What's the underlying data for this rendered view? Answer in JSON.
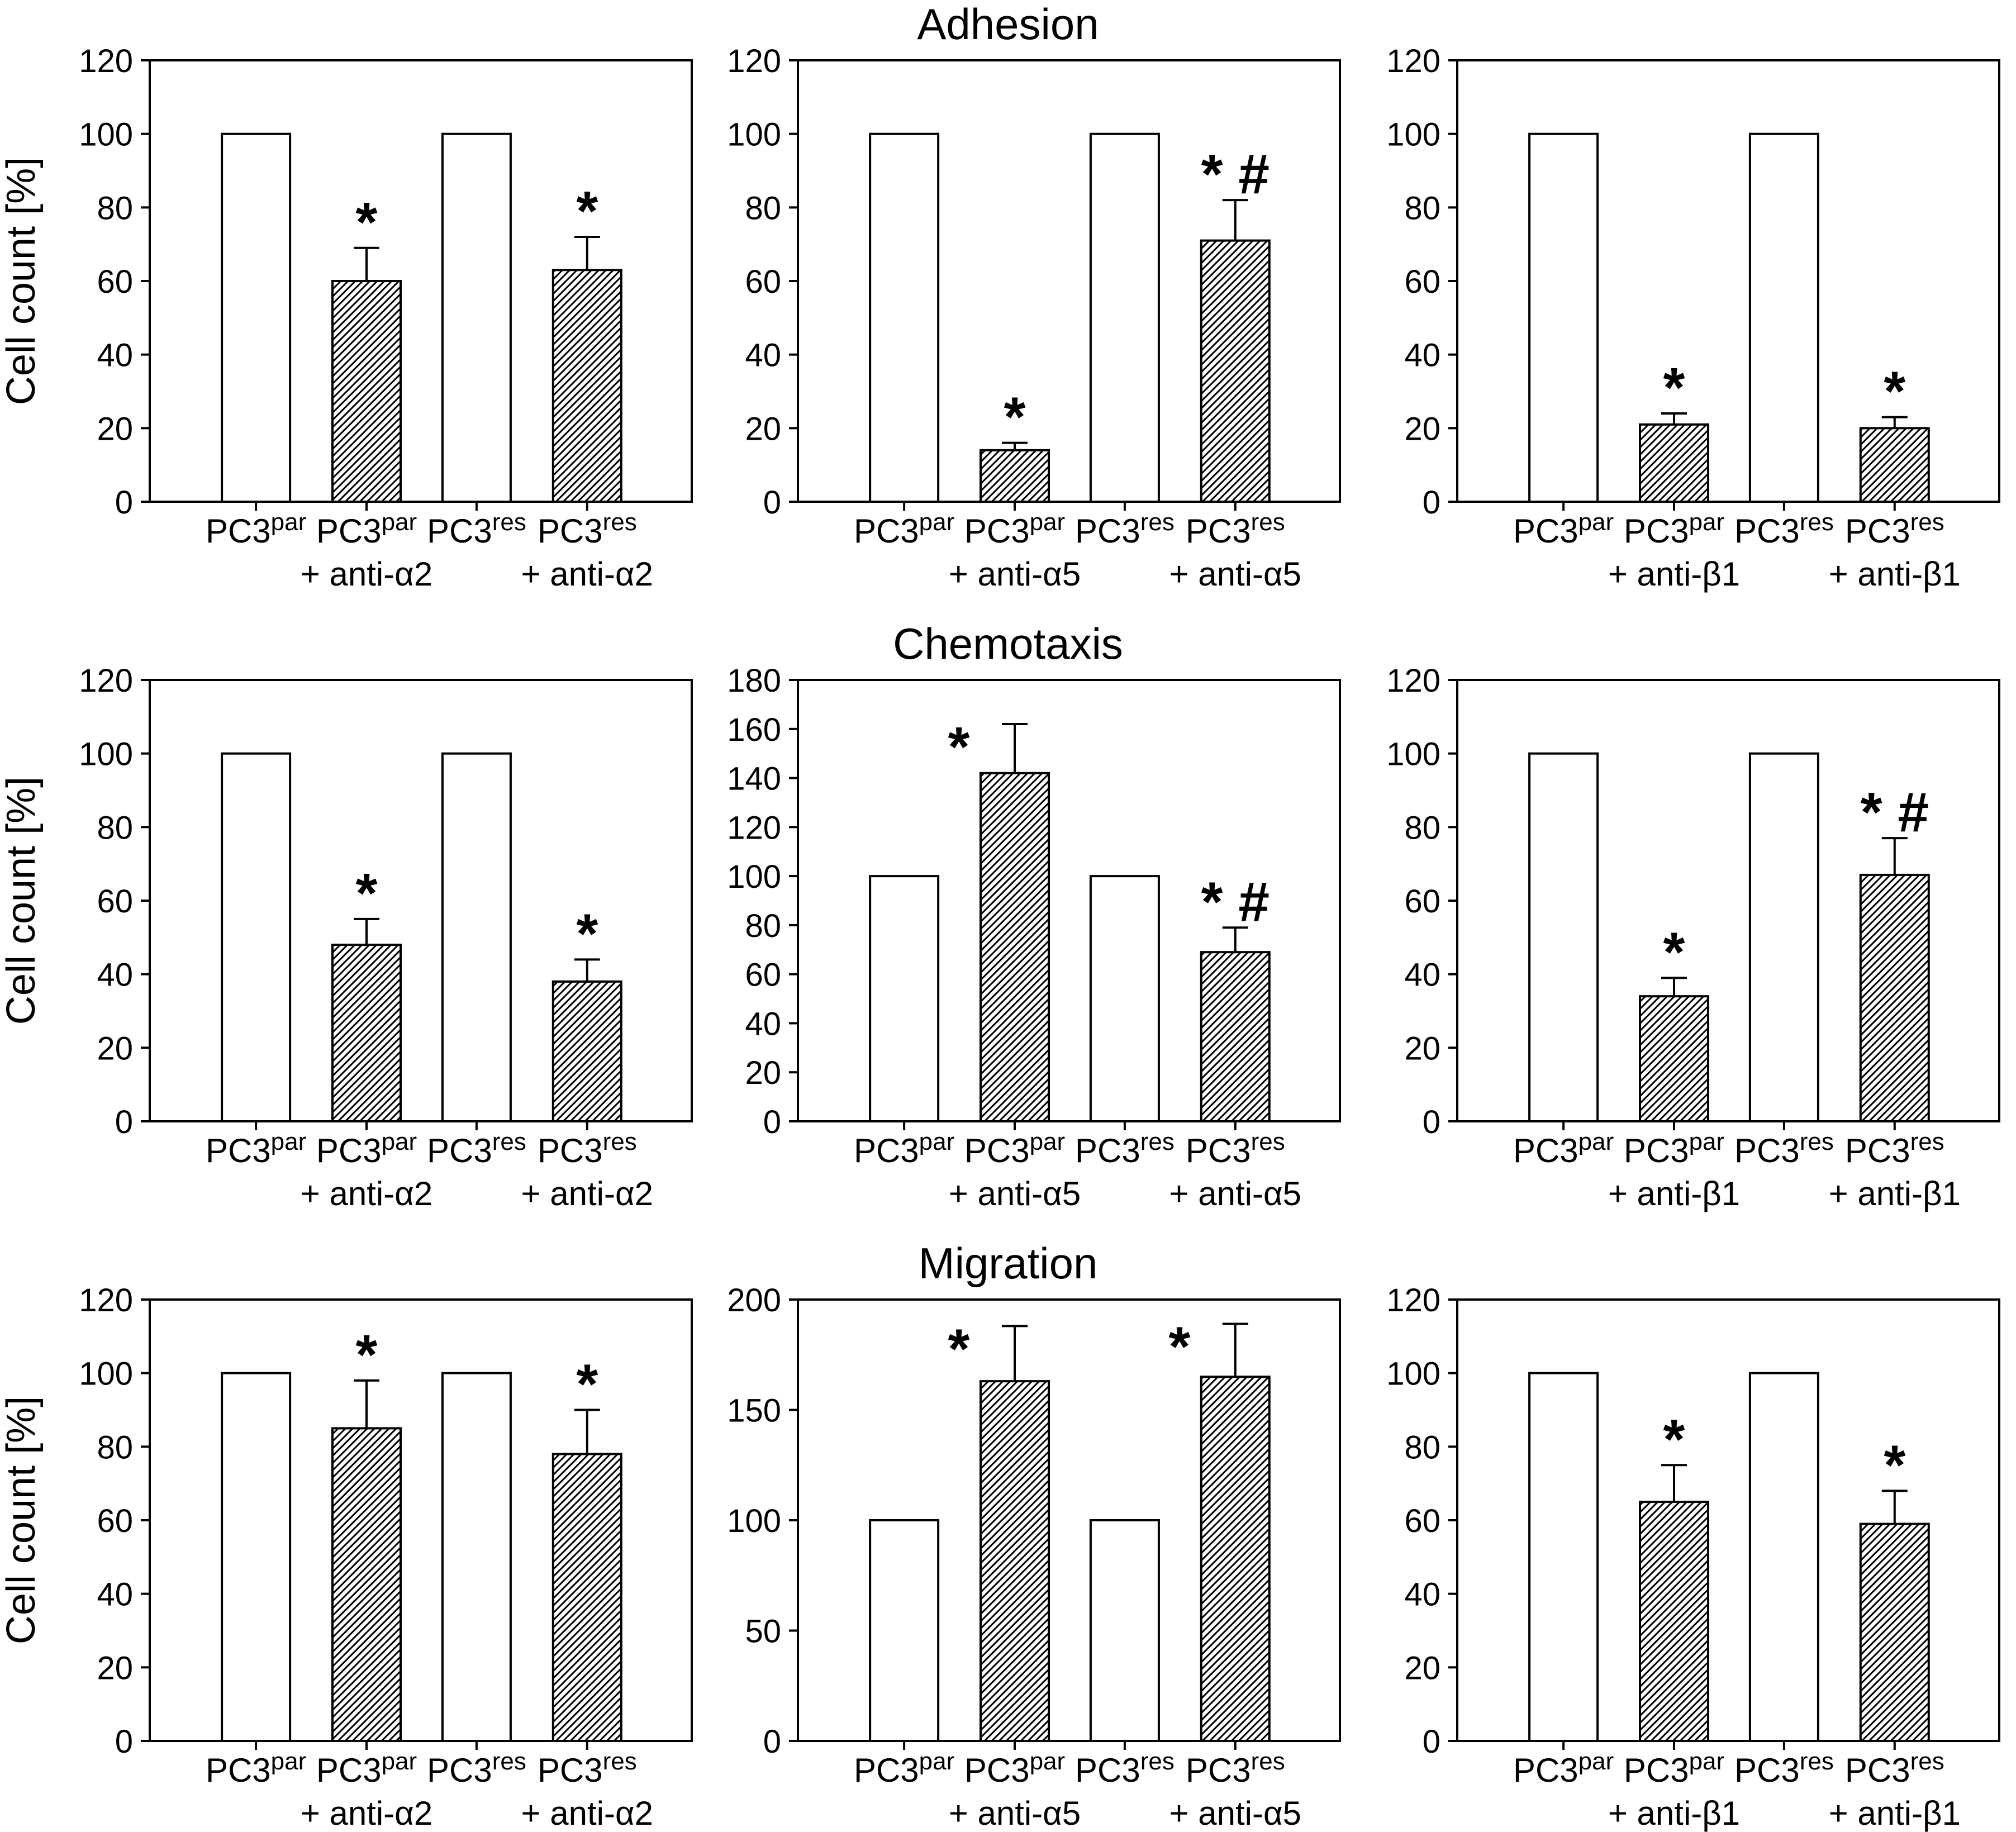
{
  "page": {
    "background_color": "#ffffff",
    "foreground_color": "#000000",
    "bar_fill_control": "#ffffff",
    "bar_fill_treated": "diagonal-hatch",
    "hatch_color": "#000000"
  },
  "chart_data": {
    "type": "bar",
    "ylabel": "Cell count [%]",
    "legend": "none",
    "grid": false,
    "rows": [
      {
        "title": "Adhesion",
        "charts": [
          {
            "ylim": [
              0,
              120
            ],
            "ystep": 20,
            "show_ylabel": true,
            "groups": [
              {
                "base": "PC3",
                "sup": "par",
                "line2": ""
              },
              {
                "base": "PC3",
                "sup": "par",
                "line2": "+ anti-α2"
              },
              {
                "base": "PC3",
                "sup": "res",
                "line2": ""
              },
              {
                "base": "PC3",
                "sup": "res",
                "line2": "+ anti-α2"
              }
            ],
            "bars": [
              {
                "value": 100,
                "err": 0,
                "marker": "",
                "hatched": false
              },
              {
                "value": 60,
                "err": 9,
                "marker": "*",
                "hatched": true
              },
              {
                "value": 100,
                "err": 0,
                "marker": "",
                "hatched": false
              },
              {
                "value": 63,
                "err": 9,
                "marker": "*",
                "hatched": true
              }
            ]
          },
          {
            "ylim": [
              0,
              120
            ],
            "ystep": 20,
            "show_ylabel": false,
            "groups": [
              {
                "base": "PC3",
                "sup": "par",
                "line2": ""
              },
              {
                "base": "PC3",
                "sup": "par",
                "line2": "+ anti-α5"
              },
              {
                "base": "PC3",
                "sup": "res",
                "line2": ""
              },
              {
                "base": "PC3",
                "sup": "res",
                "line2": "+ anti-α5"
              }
            ],
            "bars": [
              {
                "value": 100,
                "err": 0,
                "marker": "",
                "hatched": false
              },
              {
                "value": 14,
                "err": 2,
                "marker": "*",
                "hatched": true
              },
              {
                "value": 100,
                "err": 0,
                "marker": "",
                "hatched": false
              },
              {
                "value": 71,
                "err": 11,
                "marker": "* #",
                "hatched": true
              }
            ]
          },
          {
            "ylim": [
              0,
              120
            ],
            "ystep": 20,
            "show_ylabel": false,
            "groups": [
              {
                "base": "PC3",
                "sup": "par",
                "line2": ""
              },
              {
                "base": "PC3",
                "sup": "par",
                "line2": "+ anti-β1"
              },
              {
                "base": "PC3",
                "sup": "res",
                "line2": ""
              },
              {
                "base": "PC3",
                "sup": "res",
                "line2": "+ anti-β1"
              }
            ],
            "bars": [
              {
                "value": 100,
                "err": 0,
                "marker": "",
                "hatched": false
              },
              {
                "value": 21,
                "err": 3,
                "marker": "*",
                "hatched": true
              },
              {
                "value": 100,
                "err": 0,
                "marker": "",
                "hatched": false
              },
              {
                "value": 20,
                "err": 3,
                "marker": "*",
                "hatched": true
              }
            ]
          }
        ]
      },
      {
        "title": "Chemotaxis",
        "charts": [
          {
            "ylim": [
              0,
              120
            ],
            "ystep": 20,
            "show_ylabel": true,
            "groups": [
              {
                "base": "PC3",
                "sup": "par",
                "line2": ""
              },
              {
                "base": "PC3",
                "sup": "par",
                "line2": "+ anti-α2"
              },
              {
                "base": "PC3",
                "sup": "res",
                "line2": ""
              },
              {
                "base": "PC3",
                "sup": "res",
                "line2": "+ anti-α2"
              }
            ],
            "bars": [
              {
                "value": 100,
                "err": 0,
                "marker": "",
                "hatched": false
              },
              {
                "value": 48,
                "err": 7,
                "marker": "*",
                "hatched": true
              },
              {
                "value": 100,
                "err": 0,
                "marker": "",
                "hatched": false
              },
              {
                "value": 38,
                "err": 6,
                "marker": "*",
                "hatched": true
              }
            ]
          },
          {
            "ylim": [
              0,
              180
            ],
            "ystep": 20,
            "show_ylabel": false,
            "groups": [
              {
                "base": "PC3",
                "sup": "par",
                "line2": ""
              },
              {
                "base": "PC3",
                "sup": "par",
                "line2": "+ anti-α5"
              },
              {
                "base": "PC3",
                "sup": "res",
                "line2": ""
              },
              {
                "base": "PC3",
                "sup": "res",
                "line2": "+ anti-α5"
              }
            ],
            "bars": [
              {
                "value": 100,
                "err": 0,
                "marker": "",
                "hatched": false
              },
              {
                "value": 142,
                "err": 20,
                "marker": "*",
                "hatched": true
              },
              {
                "value": 100,
                "err": 0,
                "marker": "",
                "hatched": false
              },
              {
                "value": 69,
                "err": 10,
                "marker": "* #",
                "hatched": true
              }
            ]
          },
          {
            "ylim": [
              0,
              120
            ],
            "ystep": 20,
            "show_ylabel": false,
            "groups": [
              {
                "base": "PC3",
                "sup": "par",
                "line2": ""
              },
              {
                "base": "PC3",
                "sup": "par",
                "line2": "+ anti-β1"
              },
              {
                "base": "PC3",
                "sup": "res",
                "line2": ""
              },
              {
                "base": "PC3",
                "sup": "res",
                "line2": "+ anti-β1"
              }
            ],
            "bars": [
              {
                "value": 100,
                "err": 0,
                "marker": "",
                "hatched": false
              },
              {
                "value": 34,
                "err": 5,
                "marker": "*",
                "hatched": true
              },
              {
                "value": 100,
                "err": 0,
                "marker": "",
                "hatched": false
              },
              {
                "value": 67,
                "err": 10,
                "marker": "* #",
                "hatched": true
              }
            ]
          }
        ]
      },
      {
        "title": "Migration",
        "charts": [
          {
            "ylim": [
              0,
              120
            ],
            "ystep": 20,
            "show_ylabel": true,
            "groups": [
              {
                "base": "PC3",
                "sup": "par",
                "line2": ""
              },
              {
                "base": "PC3",
                "sup": "par",
                "line2": "+ anti-α2"
              },
              {
                "base": "PC3",
                "sup": "res",
                "line2": ""
              },
              {
                "base": "PC3",
                "sup": "res",
                "line2": "+ anti-α2"
              }
            ],
            "bars": [
              {
                "value": 100,
                "err": 0,
                "marker": "",
                "hatched": false
              },
              {
                "value": 85,
                "err": 13,
                "marker": "*",
                "hatched": true
              },
              {
                "value": 100,
                "err": 0,
                "marker": "",
                "hatched": false
              },
              {
                "value": 78,
                "err": 12,
                "marker": "*",
                "hatched": true
              }
            ]
          },
          {
            "ylim": [
              0,
              200
            ],
            "ystep": 50,
            "show_ylabel": false,
            "groups": [
              {
                "base": "PC3",
                "sup": "par",
                "line2": ""
              },
              {
                "base": "PC3",
                "sup": "par",
                "line2": "+ anti-α5"
              },
              {
                "base": "PC3",
                "sup": "res",
                "line2": ""
              },
              {
                "base": "PC3",
                "sup": "res",
                "line2": "+ anti-α5"
              }
            ],
            "bars": [
              {
                "value": 100,
                "err": 0,
                "marker": "",
                "hatched": false
              },
              {
                "value": 163,
                "err": 25,
                "marker": "*",
                "hatched": true
              },
              {
                "value": 100,
                "err": 0,
                "marker": "",
                "hatched": false
              },
              {
                "value": 165,
                "err": 24,
                "marker": "*",
                "hatched": true
              }
            ]
          },
          {
            "ylim": [
              0,
              120
            ],
            "ystep": 20,
            "show_ylabel": false,
            "groups": [
              {
                "base": "PC3",
                "sup": "par",
                "line2": ""
              },
              {
                "base": "PC3",
                "sup": "par",
                "line2": "+ anti-β1"
              },
              {
                "base": "PC3",
                "sup": "res",
                "line2": ""
              },
              {
                "base": "PC3",
                "sup": "res",
                "line2": "+ anti-β1"
              }
            ],
            "bars": [
              {
                "value": 100,
                "err": 0,
                "marker": "",
                "hatched": false
              },
              {
                "value": 65,
                "err": 10,
                "marker": "*",
                "hatched": true
              },
              {
                "value": 100,
                "err": 0,
                "marker": "",
                "hatched": false
              },
              {
                "value": 59,
                "err": 9,
                "marker": "*",
                "hatched": true
              }
            ]
          }
        ]
      }
    ]
  }
}
